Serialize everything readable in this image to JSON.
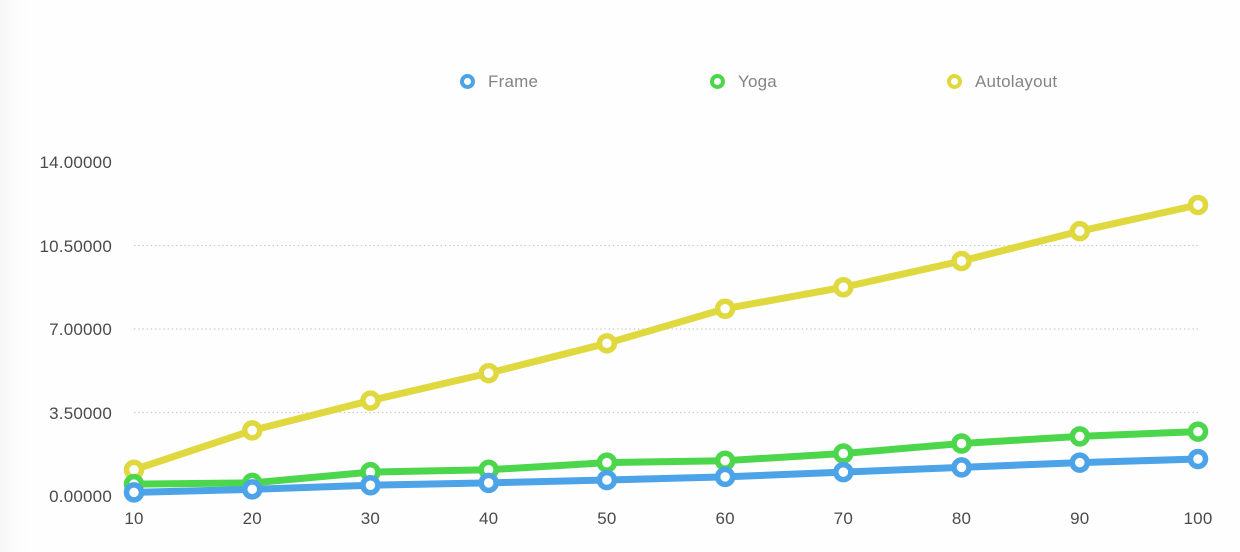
{
  "legend": {
    "items": [
      {
        "label": "Frame",
        "color": "#4da3e8"
      },
      {
        "label": "Yoga",
        "color": "#4cd64c"
      },
      {
        "label": "Autolayout",
        "color": "#dfd83e"
      }
    ]
  },
  "chart_data": {
    "type": "line",
    "title": "",
    "xlabel": "",
    "ylabel": "",
    "x": [
      10,
      20,
      30,
      40,
      50,
      60,
      70,
      80,
      90,
      100
    ],
    "x_tick_labels": [
      "10",
      "20",
      "30",
      "40",
      "50",
      "60",
      "70",
      "80",
      "90",
      "100"
    ],
    "series": [
      {
        "name": "Frame",
        "color": "#4da3e8",
        "values": [
          0.15,
          0.28,
          0.45,
          0.55,
          0.67,
          0.8,
          1.0,
          1.2,
          1.4,
          1.55
        ]
      },
      {
        "name": "Yoga",
        "color": "#4cd64c",
        "values": [
          0.5,
          0.55,
          1.0,
          1.1,
          1.4,
          1.48,
          1.78,
          2.2,
          2.5,
          2.7
        ]
      },
      {
        "name": "Autolayout",
        "color": "#dfd83e",
        "values": [
          1.1,
          2.75,
          4.0,
          5.15,
          6.4,
          7.85,
          8.75,
          9.85,
          11.1,
          12.2
        ]
      }
    ],
    "ylim": [
      0,
      14
    ],
    "y_ticks": [
      {
        "value": 0,
        "label": "0.00000"
      },
      {
        "value": 3.5,
        "label": "3.50000"
      },
      {
        "value": 7,
        "label": "7.00000"
      },
      {
        "value": 10.5,
        "label": "10.50000"
      },
      {
        "value": 14,
        "label": "14.00000"
      }
    ],
    "grid_values": [
      3.5,
      7,
      10.5
    ],
    "grid_on": true,
    "legend_position": "top",
    "gridline_color": "#c9c9c9",
    "tick_label_color": "#4a4a4a",
    "legend_text_color": "#848484",
    "marker_fill": "#ffffff"
  }
}
